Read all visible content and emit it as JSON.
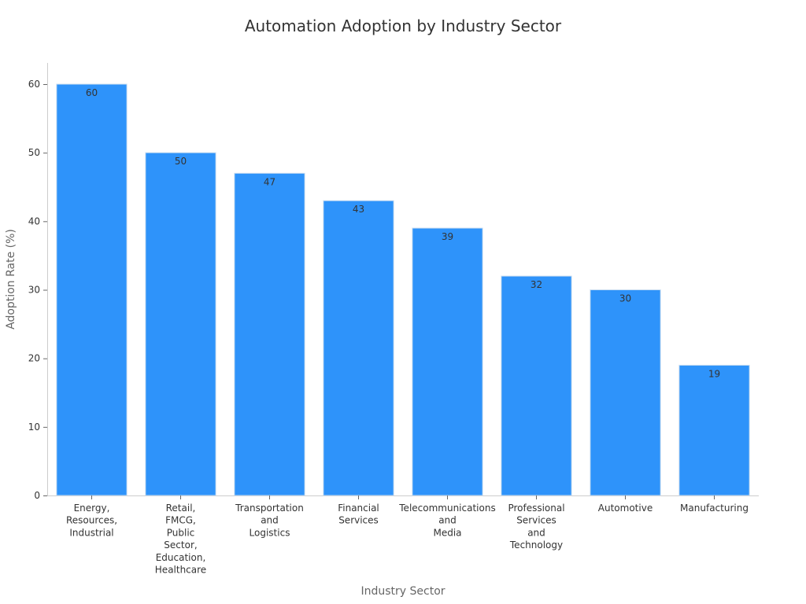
{
  "chart_data": {
    "type": "bar",
    "title": "Automation Adoption by Industry Sector",
    "xlabel": "Industry Sector",
    "ylabel": "Adoption Rate (%)",
    "ylim": [
      0,
      63
    ],
    "yticks": [
      0,
      10,
      20,
      30,
      40,
      50,
      60
    ],
    "categories": [
      "Energy, Resources, Industrial",
      "Retail, FMCG, Public Sector, Education, Healthcare",
      "Transportation and Logistics",
      "Financial Services",
      "Telecommunications and Media",
      "Professional Services and Technology",
      "Automotive",
      "Manufacturing"
    ],
    "category_label_lines": [
      [
        "Energy,",
        "Resources,",
        "Industrial"
      ],
      [
        "Retail,",
        "FMCG,",
        "Public",
        "Sector,",
        "Education,",
        "Healthcare"
      ],
      [
        "Transportation",
        "and",
        "Logistics"
      ],
      [
        "Financial",
        "Services"
      ],
      [
        "Telecommunications",
        "and",
        "Media"
      ],
      [
        "Professional",
        "Services",
        "and",
        "Technology"
      ],
      [
        "Automotive"
      ],
      [
        "Manufacturing"
      ]
    ],
    "values": [
      60,
      50,
      47,
      43,
      39,
      32,
      30,
      19
    ],
    "bar_color": "#2E93FA",
    "grid": false,
    "legend": "none"
  }
}
